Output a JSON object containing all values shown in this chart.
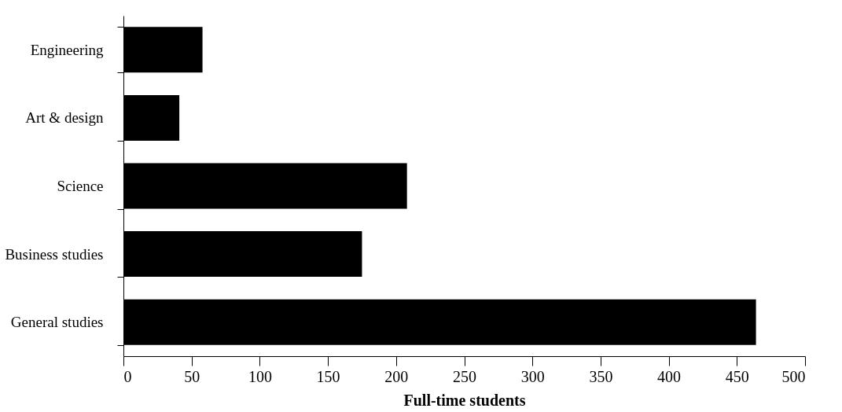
{
  "chart_data": {
    "type": "bar",
    "orientation": "horizontal",
    "xlabel": "Full-time students",
    "categories": [
      "Engineering",
      "Art & design",
      "Science",
      "Business studies",
      "General studies"
    ],
    "values": [
      58,
      41,
      208,
      175,
      464
    ],
    "color": "#000000",
    "xlim": [
      0,
      500
    ],
    "xticks": [
      0,
      50,
      100,
      150,
      200,
      250,
      300,
      350,
      400,
      450,
      500
    ],
    "grid": false
  }
}
